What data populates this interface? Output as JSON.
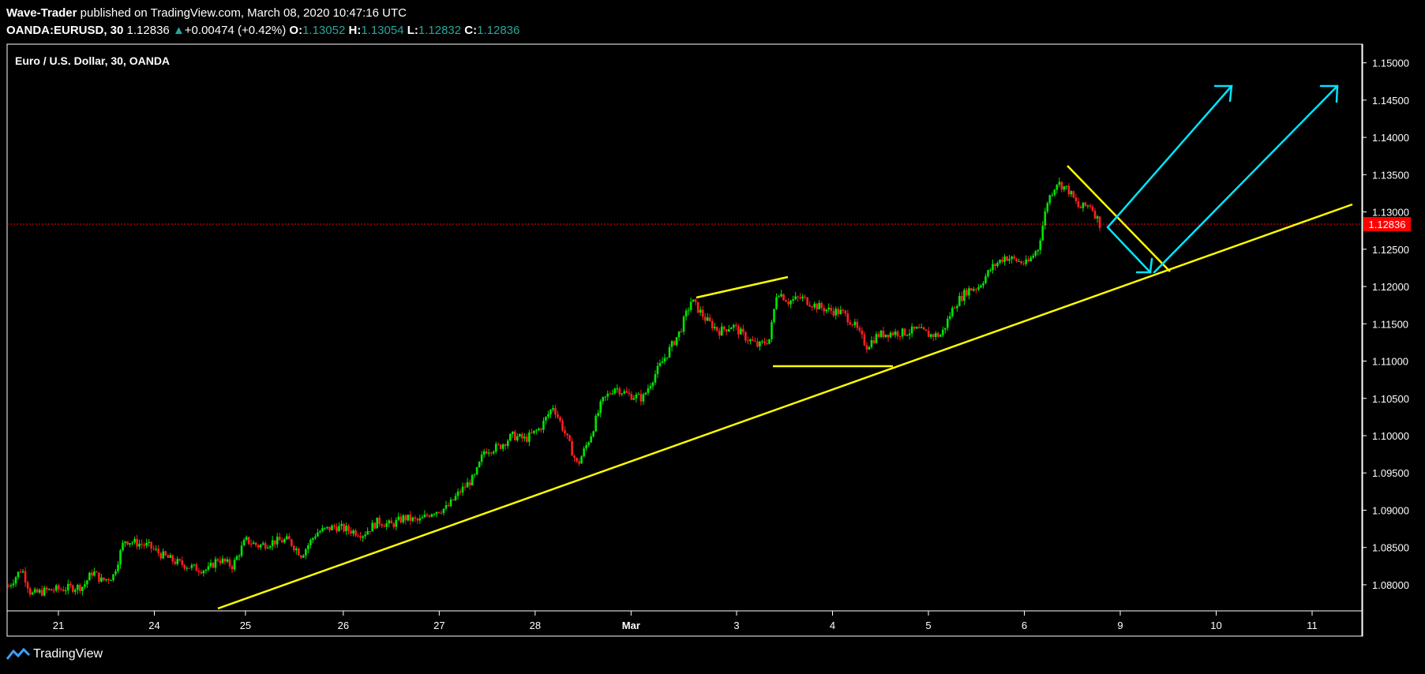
{
  "header": {
    "author": "Wave-Trader",
    "published_text": "published on TradingView.com, March 08, 2020 10:47:16 UTC",
    "symbol": "OANDA:EURUSD, 30",
    "last": "1.12836",
    "change": "+0.00474 (+0.42%)",
    "o_label": "O:",
    "o": "1.13052",
    "h_label": "H:",
    "h": "1.13054",
    "l_label": "L:",
    "l": "1.12832",
    "c_label": "C:",
    "c": "1.12836"
  },
  "chart_title": "Euro / U.S. Dollar, 30, OANDA",
  "price_badge": "1.12836",
  "footer": {
    "brand": "TradingView"
  },
  "colors": {
    "up": "#00e600",
    "down": "#ff2020",
    "trendline": "#ffff00",
    "arrow": "#00e5ff",
    "price_line": "#ff0000",
    "ohlc": "#26a69a"
  },
  "chart_data": {
    "type": "candlestick",
    "y_ticks": [
      "1.15000",
      "1.14500",
      "1.14000",
      "1.13500",
      "1.13000",
      "1.12500",
      "1.12000",
      "1.11500",
      "1.11000",
      "1.10500",
      "1.10000",
      "1.09500",
      "1.09000",
      "1.08500",
      "1.08000"
    ],
    "x_ticks": [
      "21",
      "24",
      "25",
      "26",
      "27",
      "28",
      "Mar",
      "3",
      "4",
      "5",
      "6",
      "9",
      "10",
      "11"
    ],
    "ylim": [
      1.0765,
      1.1525
    ],
    "last_price": 1.12836,
    "close_path": [
      [
        0,
        1.0798
      ],
      [
        0.7,
        1.0822
      ],
      [
        1.2,
        1.0787
      ],
      [
        2,
        1.0792
      ],
      [
        3,
        1.0795
      ],
      [
        4,
        1.0798
      ],
      [
        4.5,
        1.0818
      ],
      [
        5,
        1.0805
      ],
      [
        5.6,
        1.0812
      ],
      [
        6.2,
        1.086
      ],
      [
        7.5,
        1.0852
      ],
      [
        8.2,
        1.084
      ],
      [
        9,
        1.083
      ],
      [
        10,
        1.0822
      ],
      [
        10.7,
        1.082
      ],
      [
        11.2,
        1.0835
      ],
      [
        12,
        1.0825
      ],
      [
        12.7,
        1.086
      ],
      [
        13.4,
        1.0852
      ],
      [
        14.2,
        1.0858
      ],
      [
        15,
        1.086
      ],
      [
        15.7,
        1.084
      ],
      [
        16.5,
        1.087
      ],
      [
        17.5,
        1.0878
      ],
      [
        18.3,
        1.0873
      ],
      [
        19,
        1.0868
      ],
      [
        19.8,
        1.0885
      ],
      [
        20.5,
        1.088
      ],
      [
        21.2,
        1.089
      ],
      [
        22,
        1.0885
      ],
      [
        22.7,
        1.0898
      ],
      [
        23.5,
        1.0903
      ],
      [
        24.2,
        1.0925
      ],
      [
        25,
        1.0945
      ],
      [
        25.5,
        1.098
      ],
      [
        26.3,
        1.0985
      ],
      [
        27,
        1.1
      ],
      [
        27.7,
        1.0995
      ],
      [
        28.5,
        1.101
      ],
      [
        29.2,
        1.104
      ],
      [
        29.8,
        1.1005
      ],
      [
        30.5,
        1.096
      ],
      [
        31.2,
        1.1
      ],
      [
        31.8,
        1.1045
      ],
      [
        32.5,
        1.1065
      ],
      [
        33.2,
        1.1055
      ],
      [
        34,
        1.105
      ],
      [
        34.6,
        1.108
      ],
      [
        35.3,
        1.111
      ],
      [
        36,
        1.114
      ],
      [
        36.6,
        1.1182
      ],
      [
        37.4,
        1.1155
      ],
      [
        38.1,
        1.114
      ],
      [
        38.8,
        1.1148
      ],
      [
        39.5,
        1.1132
      ],
      [
        40.2,
        1.112
      ],
      [
        40.8,
        1.113
      ],
      [
        41.2,
        1.1195
      ],
      [
        41.8,
        1.118
      ],
      [
        42.5,
        1.1185
      ],
      [
        43.2,
        1.1175
      ],
      [
        44,
        1.1168
      ],
      [
        44.7,
        1.1165
      ],
      [
        45.3,
        1.115
      ],
      [
        46,
        1.112
      ],
      [
        46.6,
        1.1135
      ],
      [
        47.3,
        1.1138
      ],
      [
        48,
        1.1138
      ],
      [
        48.7,
        1.1142
      ],
      [
        49.4,
        1.1135
      ],
      [
        50,
        1.1135
      ],
      [
        50.7,
        1.1175
      ],
      [
        51.4,
        1.1195
      ],
      [
        52,
        1.12
      ],
      [
        52.7,
        1.1225
      ],
      [
        53.4,
        1.124
      ],
      [
        54,
        1.1235
      ],
      [
        54.6,
        1.123
      ],
      [
        55.2,
        1.1252
      ],
      [
        55.7,
        1.1315
      ],
      [
        56.2,
        1.134
      ],
      [
        56.8,
        1.133
      ],
      [
        57.4,
        1.1305
      ],
      [
        58,
        1.131
      ],
      [
        58.5,
        1.1284
      ]
    ]
  }
}
